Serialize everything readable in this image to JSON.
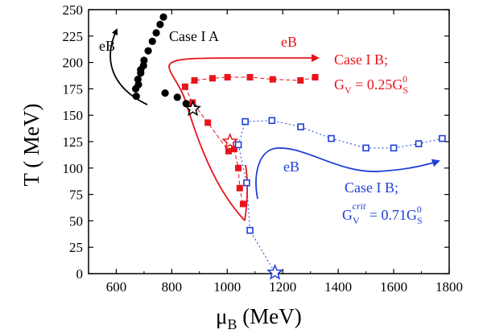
{
  "chart_data": {
    "type": "scatter",
    "xlabel": "μ_B (MeV)",
    "ylabel": "T ( MeV)",
    "xlim": [
      500,
      1800
    ],
    "ylim": [
      0,
      250
    ],
    "xticks": [
      600,
      800,
      1000,
      1200,
      1400,
      1600,
      1800
    ],
    "yticks": [
      0,
      25,
      50,
      75,
      100,
      125,
      150,
      175,
      200,
      225,
      250
    ],
    "grid": false,
    "colors": {
      "caseIA": "#000000",
      "caseIB_025": "#e8141b",
      "caseIB_crit": "#1f3fd6"
    },
    "series": [
      {
        "name": "Case I A",
        "marker": "filled-circle",
        "points": [
          [
            770,
            243
          ],
          [
            758,
            236
          ],
          [
            744,
            228
          ],
          [
            730,
            220
          ],
          [
            715,
            211
          ],
          [
            700,
            202
          ],
          [
            688,
            193
          ],
          [
            678,
            184
          ],
          [
            670,
            175
          ],
          [
            672,
            168
          ],
          [
            680,
            179
          ],
          [
            688,
            190
          ],
          [
            698,
            197
          ],
          [
            776,
            171
          ],
          [
            820,
            167
          ],
          [
            852,
            161
          ],
          [
            877,
            158
          ]
        ]
      },
      {
        "name": "Case I B; G_V = 0.25 G_S^0",
        "marker": "filled-square",
        "line": "dash",
        "points": [
          [
            848,
            177
          ],
          [
            882,
            183
          ],
          [
            947,
            185
          ],
          [
            1001,
            186
          ],
          [
            1082,
            186
          ],
          [
            1164,
            184
          ],
          [
            1264,
            183
          ],
          [
            1317,
            186
          ],
          [
            875,
            162
          ],
          [
            930,
            143
          ],
          [
            1005,
            116
          ],
          [
            1025,
            118
          ],
          [
            1040,
            100
          ],
          [
            1045,
            81
          ],
          [
            1057,
            66
          ]
        ]
      },
      {
        "name": "Case I B; G_V^crit = 0.71 G_S^0",
        "marker": "open-square",
        "line": "dot",
        "points": [
          [
            1040,
            122
          ],
          [
            1065,
            144
          ],
          [
            1161,
            145
          ],
          [
            1265,
            139
          ],
          [
            1375,
            128
          ],
          [
            1500,
            119
          ],
          [
            1600,
            119
          ],
          [
            1690,
            123
          ],
          [
            1775,
            128
          ],
          [
            1070,
            86
          ],
          [
            1082,
            41
          ]
        ]
      }
    ],
    "critical_points": [
      [
        876,
        156
      ],
      [
        1010,
        125
      ],
      [
        1172,
        1
      ]
    ],
    "annotations": {
      "eB_black": "eB",
      "caseIA": "Case I A",
      "eB_red": "eB",
      "caseIB_red_line1": "Case I B;",
      "caseIB_red_G": "G",
      "caseIB_red_V": "V",
      "caseIB_red_eq": " = 0.25G",
      "caseIB_red_S": "S",
      "caseIB_red_0": "0",
      "eB_blue": "eB",
      "caseIB_blue_line1": "Case I B;",
      "caseIB_blue_G": "G",
      "caseIB_blue_V": "V",
      "caseIB_blue_crit": "crit",
      "caseIB_blue_eq": " = 0.71G",
      "caseIB_blue_S": "S",
      "caseIB_blue_0": "0"
    }
  },
  "axes_text": {
    "x_mu": "μ",
    "x_sub": "B",
    "x_unit": " (MeV)",
    "y_label": "T ( MeV)"
  }
}
